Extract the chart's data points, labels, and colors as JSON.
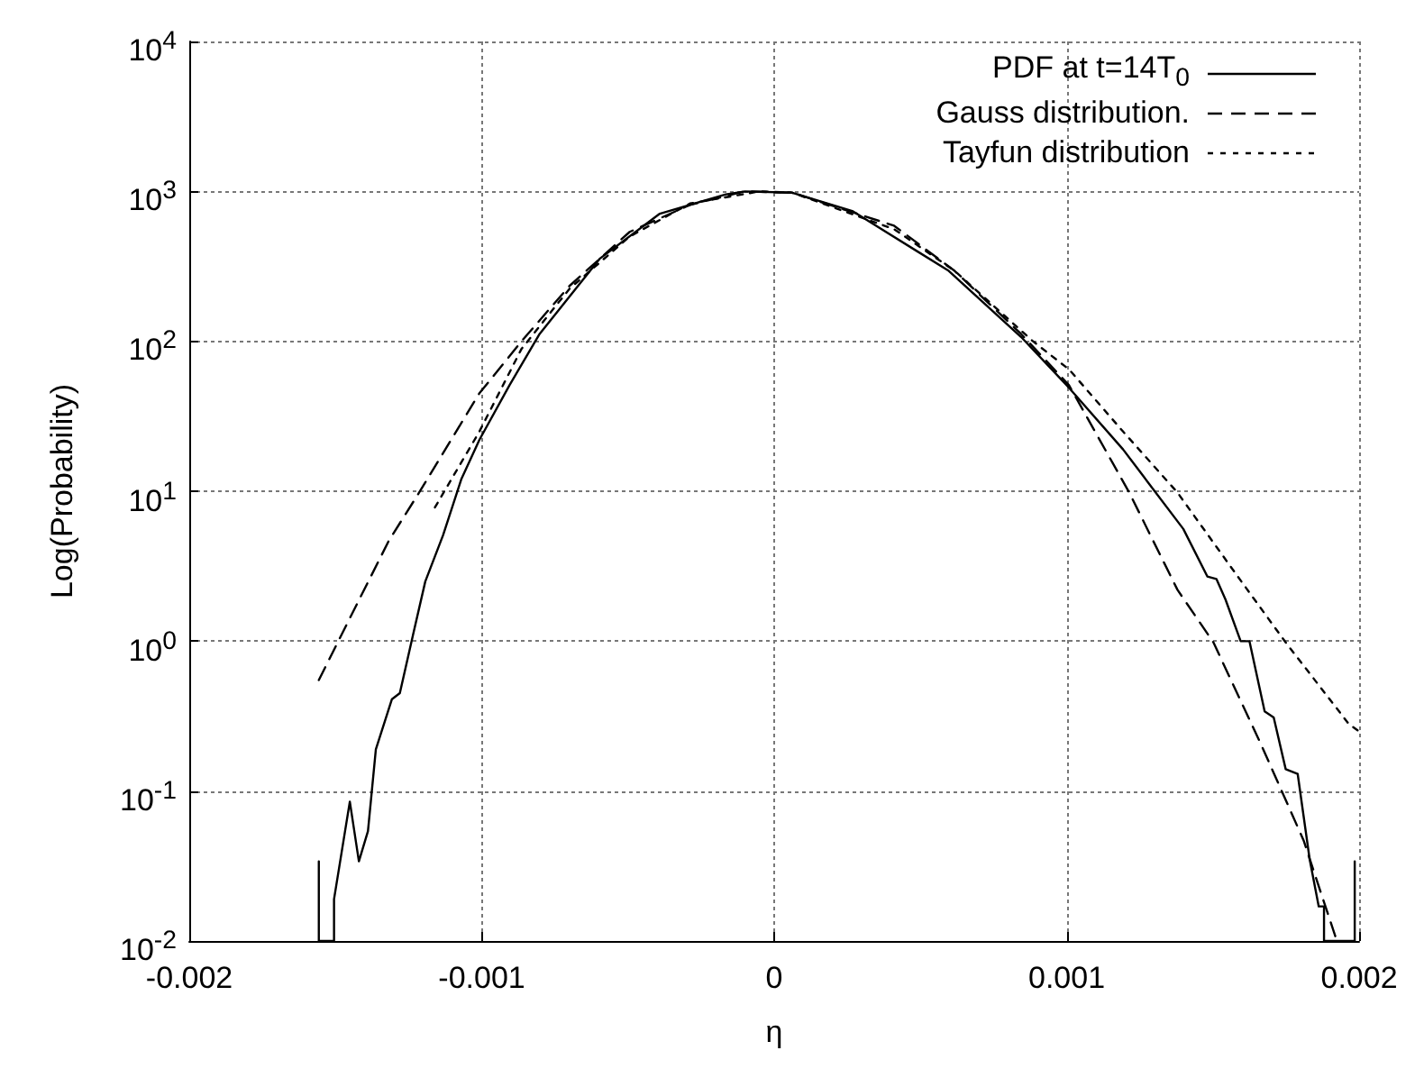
{
  "chart_data": {
    "type": "line",
    "xlabel": "η",
    "ylabel": "Log(Probability)",
    "log": "y",
    "grid": true,
    "legend": "top right",
    "xlim": [
      -0.002,
      0.002
    ],
    "xticks": [
      -0.002,
      -0.001,
      0,
      0.001,
      0.002
    ],
    "ylim": [
      0.01,
      10000
    ],
    "yticks": [
      {
        "value": 0.01,
        "label": "10$^{-2}$"
      },
      {
        "value": 0.1,
        "label": "10$^{-1}$"
      },
      {
        "value": 1,
        "label": "10$^{0}$"
      },
      {
        "value": 10,
        "label": "10$^{1}$"
      },
      {
        "value": 100,
        "label": "10$^{2}$"
      },
      {
        "value": 1000,
        "label": "10$^{3}$"
      },
      {
        "value": 10000,
        "label": "10$^{4}$"
      }
    ],
    "series": [
      {
        "name": "PDF at t=14T$_{0}$",
        "color": "#000000",
        "line_style": "solid",
        "x": [
          -0.001557,
          -0.001557,
          -0.001557,
          -0.001505,
          -0.001505,
          -0.001451,
          -0.00142,
          -0.001389,
          -0.001362,
          -0.001307,
          -0.00128,
          -0.001235,
          -0.001193,
          -0.001132,
          -0.00107,
          -0.001008,
          -0.000905,
          -0.000802,
          -0.000597,
          -0.000391,
          -0.000165,
          -0.0001,
          6.2e-05,
          0.000267,
          0.000597,
          0.000844,
          0.001008,
          0.001193,
          0.001399,
          0.001481,
          0.001512,
          0.001543,
          0.001595,
          0.001625,
          0.001677,
          0.001708,
          0.001749,
          0.00179,
          0.001831,
          0.001862,
          0.00188,
          0.00188,
          0.001985,
          0.001985,
          0.001985
        ],
        "values": [
          0.01,
          0.034,
          0.01,
          0.01,
          0.019,
          0.085,
          0.034,
          0.054,
          0.19,
          0.41,
          0.45,
          1.1,
          2.5,
          5.1,
          12,
          22,
          51,
          112,
          355,
          710,
          955,
          1000,
          980,
          740,
          295,
          107,
          49,
          19,
          5.6,
          2.7,
          2.6,
          1.9,
          1.0,
          1.0,
          0.34,
          0.31,
          0.14,
          0.13,
          0.035,
          0.017,
          0.017,
          0.01,
          0.01,
          0.034,
          0.01
        ]
      },
      {
        "name": "Gauss distribution.",
        "color": "#000000",
        "line_style": "dashed",
        "x": [
          -0.001557,
          -0.001461,
          -0.001317,
          -0.001214,
          -0.001008,
          -0.000864,
          -0.0007,
          -0.000494,
          -0.000288,
          -0.0001,
          6.2e-05,
          0.00041,
          0.000617,
          0.000844,
          0.001008,
          0.001214,
          0.001379,
          0.001502,
          0.001667,
          0.00181,
          0.001924
        ],
        "values": [
          0.55,
          1.3,
          4.7,
          9.8,
          45,
          100,
          234,
          537,
          813,
          1000,
          980,
          590,
          295,
          112,
          51,
          9.8,
          2.2,
          0.98,
          0.2,
          0.047,
          0.01
        ]
      },
      {
        "name": "Tayfun distribution",
        "color": "#000000",
        "line_style": "dotted",
        "x": [
          -0.00116,
          -0.001008,
          -0.000864,
          -0.0007,
          -0.000494,
          -0.000288,
          -5e-05,
          6.2e-05,
          0.00041,
          0.000617,
          0.000885,
          0.001008,
          0.001193,
          0.001379,
          0.001585,
          0.001749,
          0.001965,
          0.002
        ],
        "values": [
          7.8,
          25,
          89,
          224,
          500,
          830,
          1000,
          980,
          560,
          295,
          100,
          65,
          25,
          9.8,
          2.7,
          0.98,
          0.28,
          0.25
        ]
      }
    ]
  }
}
